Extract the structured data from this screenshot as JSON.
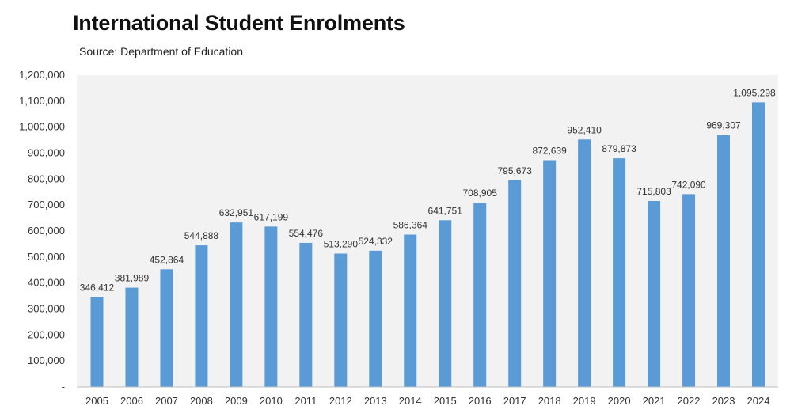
{
  "chart_data": {
    "type": "bar",
    "title": "International Student Enrolments",
    "subtitle": "Source: Department of Education",
    "xlabel": "",
    "ylabel": "",
    "categories": [
      "2005",
      "2006",
      "2007",
      "2008",
      "2009",
      "2010",
      "2011",
      "2012",
      "2013",
      "2014",
      "2015",
      "2016",
      "2017",
      "2018",
      "2019",
      "2020",
      "2021",
      "2022",
      "2023",
      "2024"
    ],
    "values": [
      346412,
      381989,
      452864,
      544888,
      632951,
      617199,
      554476,
      513290,
      524332,
      586364,
      641751,
      708905,
      795673,
      872639,
      952410,
      879873,
      715803,
      742090,
      969307,
      1095298
    ],
    "data_labels": [
      "346,412",
      "381,989",
      "452,864",
      "544,888",
      "632,951",
      "617,199",
      "554,476",
      "513,290",
      "524,332",
      "586,364",
      "641,751",
      "708,905",
      "795,673",
      "872,639",
      "952,410",
      "879,873",
      "715,803",
      "742,090",
      "969,307",
      "1,095,298"
    ],
    "ylim": [
      0,
      1200000
    ],
    "y_ticks": [
      0,
      100000,
      200000,
      300000,
      400000,
      500000,
      600000,
      700000,
      800000,
      900000,
      1000000,
      1100000,
      1200000
    ],
    "y_tick_labels": [
      "-",
      "100,000",
      "200,000",
      "300,000",
      "400,000",
      "500,000",
      "600,000",
      "700,000",
      "800,000",
      "900,000",
      "1,000,000",
      "1,100,000",
      "1,200,000"
    ],
    "grid": false,
    "legend": "none",
    "colors": {
      "bar": "#5b9bd5",
      "plot_background": "#f2f2f2",
      "axis": "#bfbfbf"
    }
  }
}
